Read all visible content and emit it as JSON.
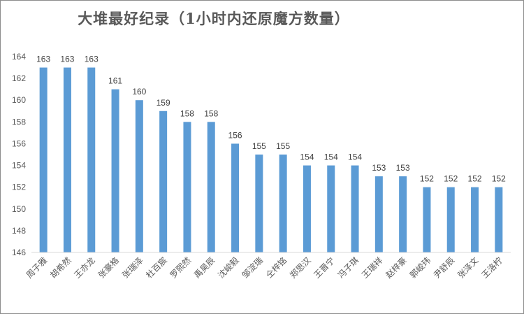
{
  "chart_data": {
    "type": "bar",
    "title": "大堆最好纪录（1小时内还原魔方数量）",
    "xlabel": "",
    "ylabel": "",
    "categories": [
      "周子雅",
      "胡希然",
      "王亦龙",
      "张豪格",
      "张瑞泽",
      "杜百宸",
      "罗熙然",
      "禹昊辰",
      "沈峻毅",
      "邹淀瑞",
      "仝梓铭",
      "郑思汉",
      "王晋宁",
      "冯子琪",
      "王瑞祥",
      "赵梓豪",
      "郭峻玮",
      "尹舒辰",
      "张泽文",
      "王洛柠"
    ],
    "values": [
      163,
      163,
      163,
      161,
      160,
      159,
      158,
      158,
      156,
      155,
      155,
      154,
      154,
      154,
      153,
      153,
      152,
      152,
      152,
      152
    ],
    "ylim": [
      146,
      164
    ],
    "yticks": [
      146,
      148,
      150,
      152,
      154,
      156,
      158,
      160,
      162,
      164
    ],
    "grid": false,
    "legend": "none",
    "bar_color": "#5b9bd5",
    "axis_color": "#d9d9d9"
  }
}
